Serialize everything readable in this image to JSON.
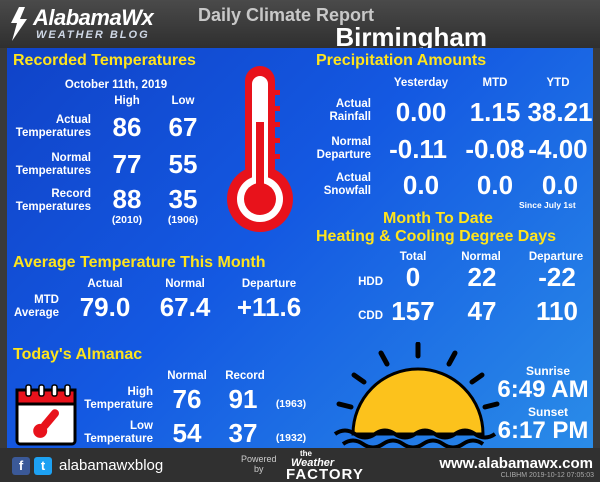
{
  "header": {
    "logo_title": "AlabamaWx",
    "logo_subtitle": "WEATHER BLOG",
    "report_title": "Daily Climate Report",
    "city": "Birmingham"
  },
  "recorded": {
    "title": "Recorded Temperatures",
    "date": "October 11th, 2019",
    "col_high": "High",
    "col_low": "Low",
    "actual_label_1": "Actual",
    "actual_label_2": "Temperatures",
    "actual_high": "86",
    "actual_low": "67",
    "normal_label_1": "Normal",
    "normal_label_2": "Temperatures",
    "normal_high": "77",
    "normal_low": "55",
    "record_label_1": "Record",
    "record_label_2": "Temperatures",
    "record_high": "88",
    "record_low": "35",
    "record_high_year": "(2010)",
    "record_low_year": "(1906)"
  },
  "precip": {
    "title": "Precipitation Amounts",
    "col_yesterday": "Yesterday",
    "col_mtd": "MTD",
    "col_ytd": "YTD",
    "rain_label_1": "Actual",
    "rain_label_2": "Rainfall",
    "rain_yesterday": "0.00",
    "rain_mtd": "1.15",
    "rain_ytd": "38.21",
    "dep_label_1": "Normal",
    "dep_label_2": "Departure",
    "dep_yesterday": "-0.11",
    "dep_mtd": "-0.08",
    "dep_ytd": "-4.00",
    "snow_label_1": "Actual",
    "snow_label_2": "Snowfall",
    "snow_yesterday": "0.0",
    "snow_mtd": "0.0",
    "snow_ytd": "0.0",
    "since_note": "Since  July  1st"
  },
  "degree_days": {
    "title_1": "Month To Date",
    "title_2": "Heating & Cooling Degree Days",
    "col_total": "Total",
    "col_normal": "Normal",
    "col_departure": "Departure",
    "hdd_label": "HDD",
    "hdd_total": "0",
    "hdd_normal": "22",
    "hdd_departure": "-22",
    "cdd_label": "CDD",
    "cdd_total": "157",
    "cdd_normal": "47",
    "cdd_departure": "110"
  },
  "avg_temp": {
    "title": "Average Temperature This Month",
    "col_actual": "Actual",
    "col_normal": "Normal",
    "col_departure": "Departure",
    "row_label_1": "MTD",
    "row_label_2": "Average",
    "actual": "79.0",
    "normal": "67.4",
    "departure": "+11.6"
  },
  "almanac": {
    "title": "Today's Almanac",
    "col_normal": "Normal",
    "col_record": "Record",
    "high_label_1": "High",
    "high_label_2": "Temperature",
    "high_normal": "76",
    "high_record": "91",
    "high_record_year": "(1963)",
    "low_label_1": "Low",
    "low_label_2": "Temperature",
    "low_normal": "54",
    "low_record": "37",
    "low_record_year": "(1932)"
  },
  "sun": {
    "sunrise_label": "Sunrise",
    "sunrise": "6:49 AM",
    "sunset_label": "Sunset",
    "sunset": "6:17 PM"
  },
  "footer": {
    "social_handle": "alabamawxblog",
    "powered_1": "Powered",
    "powered_2": "by",
    "factory_the": "the",
    "factory_weather": "Weather",
    "factory_name": "FACTORY",
    "website": "www.alabamawx.com",
    "stamp": "CLIBHM  2019-10-12  07:05:03"
  },
  "colors": {
    "section_title": "#ffe41c",
    "panel_blue": "#1459e2",
    "thermometer_red": "#e8121b",
    "sun_yellow": "#fcc21c"
  }
}
